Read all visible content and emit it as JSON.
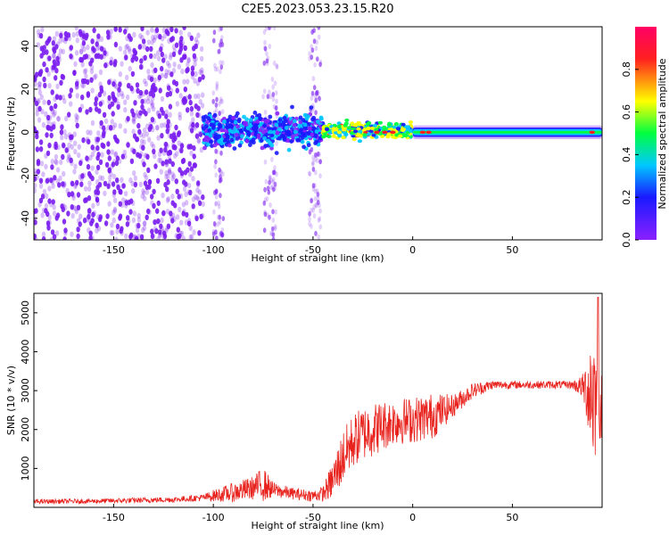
{
  "figure_title": "C2E5.2023.053.23.15.R20",
  "colors": {
    "snr_line": "#e8231e",
    "axis": "#000000",
    "spectrogram_point": "#7a1cf0",
    "colormap": [
      "#8a20ff",
      "#1a1aff",
      "#00c8ff",
      "#00ff40",
      "#ffff00",
      "#ff2020",
      "#ff0066"
    ]
  },
  "chart_data": [
    {
      "type": "heatmap",
      "title": "",
      "xlabel": "Height of straight line (km)",
      "ylabel": "Frequency (Hz)",
      "xlim": [
        -190,
        95
      ],
      "ylim": [
        -50,
        49
      ],
      "xticks": [
        -150,
        -100,
        -50,
        0,
        50
      ],
      "yticks": [
        -40,
        -20,
        0,
        20,
        40
      ],
      "colorbar": {
        "label": "Normalized spectral amplitude",
        "range": [
          0,
          1
        ],
        "ticks": [
          "0.0",
          "0.2",
          "0.4",
          "0.6",
          "0.8"
        ],
        "tick_values": [
          0.0,
          0.2,
          0.4,
          0.6,
          0.8
        ]
      },
      "description_regions": [
        {
          "x_range": [
            -190,
            -105
          ],
          "freq_range": [
            -50,
            49
          ],
          "amplitude": 0.05
        },
        {
          "x_range": [
            -105,
            -45
          ],
          "freq_range": [
            -10,
            10
          ],
          "amplitude": 0.3
        },
        {
          "x_range": [
            -45,
            0
          ],
          "freq_range": [
            -4,
            6
          ],
          "amplitude": 0.55
        },
        {
          "x_range": [
            0,
            95
          ],
          "freq_range": [
            -3,
            3
          ],
          "amplitude": 0.4
        }
      ]
    },
    {
      "type": "line",
      "title": "",
      "xlabel": "Height of straight line (km)",
      "ylabel": "SNR (10 * v/v)",
      "xlim": [
        -190,
        95
      ],
      "ylim": [
        0,
        5500
      ],
      "xticks": [
        -150,
        -100,
        -50,
        0,
        50
      ],
      "yticks": [
        1000,
        2000,
        3000,
        4000,
        5000
      ],
      "series": [
        {
          "name": "SNR",
          "envelope_x": [
            -190,
            -160,
            -140,
            -120,
            -105,
            -100,
            -90,
            -80,
            -75,
            -70,
            -60,
            -50,
            -45,
            -40,
            -35,
            -30,
            -25,
            -20,
            -10,
            0,
            10,
            20,
            25,
            30,
            40,
            50,
            60,
            70,
            80,
            85,
            88,
            90,
            92,
            94
          ],
          "envelope_mean": [
            150,
            160,
            180,
            200,
            250,
            300,
            380,
            500,
            600,
            450,
            350,
            300,
            350,
            700,
            1300,
            1700,
            1900,
            2000,
            2200,
            2250,
            2350,
            2600,
            2800,
            3000,
            3150,
            3150,
            3150,
            3150,
            3150,
            3100,
            3000,
            3050,
            2800,
            2600
          ],
          "envelope_spread": [
            60,
            60,
            70,
            70,
            90,
            150,
            250,
            300,
            450,
            200,
            150,
            150,
            200,
            500,
            700,
            700,
            700,
            700,
            600,
            600,
            600,
            300,
            250,
            200,
            120,
            100,
            100,
            100,
            100,
            300,
            1000,
            2300,
            1500,
            900
          ],
          "peak_value": 5400
        }
      ]
    }
  ]
}
